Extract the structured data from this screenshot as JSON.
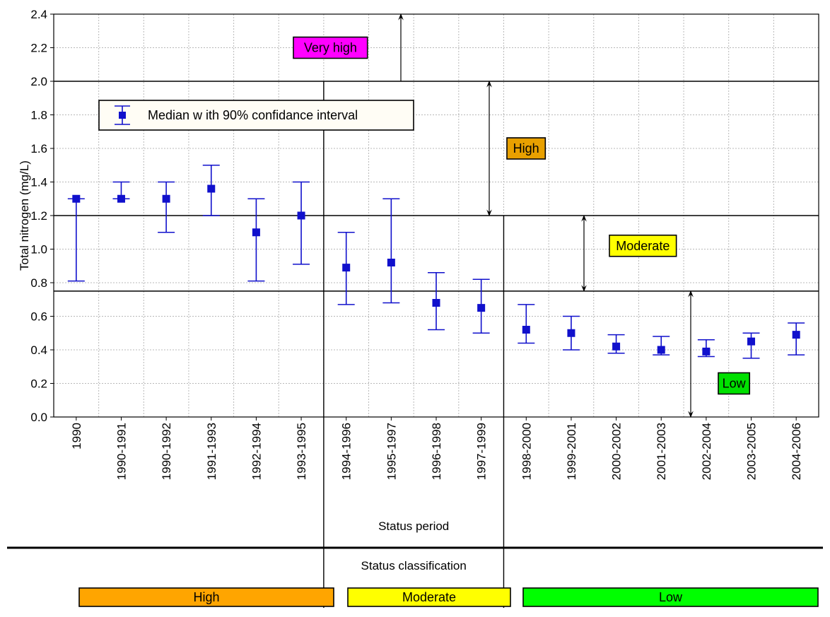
{
  "chart_data": {
    "type": "scatter",
    "title": "",
    "xlabel": "Status period",
    "ylabel": "Total nitrogen (mg/L)",
    "ylim": [
      0,
      2.4
    ],
    "yticks": [
      "0.0",
      "0.2",
      "0.4",
      "0.6",
      "0.8",
      "1.0",
      "1.2",
      "1.4",
      "1.6",
      "1.8",
      "2.0",
      "2.2",
      "2.4"
    ],
    "grid": true,
    "legend": {
      "label": "Median w ith 90% confidance interval",
      "placement": "top-left"
    },
    "categories": [
      "1990",
      "1990-1991",
      "1990-1992",
      "1991-1993",
      "1992-1994",
      "1993-1995",
      "1994-1996",
      "1995-1997",
      "1996-1998",
      "1997-1999",
      "1998-2000",
      "1999-2001",
      "2000-2002",
      "2001-2003",
      "2002-2004",
      "2003-2005",
      "2004-2006"
    ],
    "series": [
      {
        "median": [
          1.3,
          1.3,
          1.3,
          1.36,
          1.1,
          1.2,
          0.89,
          0.92,
          0.68,
          0.65,
          0.52,
          0.5,
          0.42,
          0.4,
          0.39,
          0.45,
          0.49
        ],
        "ci_low": [
          0.81,
          1.3,
          1.1,
          1.2,
          0.81,
          0.91,
          0.67,
          0.68,
          0.52,
          0.5,
          0.44,
          0.4,
          0.38,
          0.37,
          0.36,
          0.35,
          0.37
        ],
        "ci_high": [
          1.3,
          1.4,
          1.4,
          1.5,
          1.3,
          1.4,
          1.1,
          1.3,
          0.86,
          0.82,
          0.67,
          0.6,
          0.49,
          0.48,
          0.46,
          0.5,
          0.56
        ]
      }
    ],
    "thresholds": [
      0.75,
      1.2,
      2.0
    ],
    "class_labels": [
      {
        "label": "Very high",
        "color": "#ff00ff",
        "y": 2.2
      },
      {
        "label": "High",
        "color": "#e8a000",
        "y": 1.6
      },
      {
        "label": "Moderate",
        "color": "#ffff00",
        "y": 1.02
      },
      {
        "label": "Low",
        "color": "#00e000",
        "y": 0.2
      }
    ],
    "class_arrows": [
      [
        2.0,
        2.4
      ],
      [
        1.2,
        2.0
      ],
      [
        0.75,
        1.2
      ],
      [
        0.0,
        0.75
      ]
    ],
    "marker_color": "#1010cc"
  },
  "status": {
    "heading": "Status classification",
    "bars": [
      {
        "label": "High",
        "color": "#ffa500"
      },
      {
        "label": "Moderate",
        "color": "#ffff00"
      },
      {
        "label": "Low",
        "color": "#00ff00"
      }
    ]
  }
}
